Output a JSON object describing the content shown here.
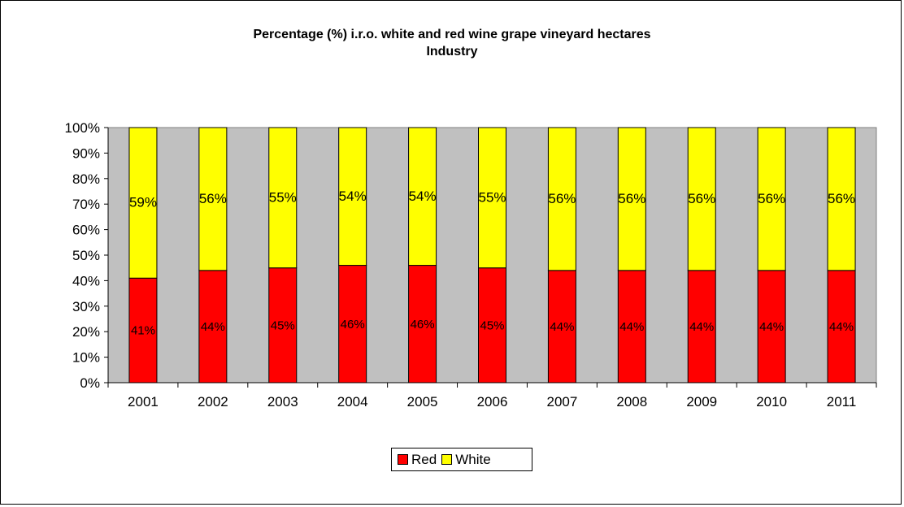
{
  "chart_data": {
    "type": "bar",
    "stacked": true,
    "title": "Percentage (%) i.r.o. white and red wine grape vineyard hectares",
    "subtitle": "Industry",
    "categories": [
      "2001",
      "2002",
      "2003",
      "2004",
      "2005",
      "2006",
      "2007",
      "2008",
      "2009",
      "2010",
      "2011"
    ],
    "series": [
      {
        "name": "Red",
        "color": "#ff0000",
        "values": [
          41,
          44,
          45,
          46,
          46,
          45,
          44,
          44,
          44,
          44,
          44
        ],
        "labels": [
          "41%",
          "44%",
          "45%",
          "46%",
          "46%",
          "45%",
          "44%",
          "44%",
          "44%",
          "44%",
          "44%"
        ]
      },
      {
        "name": "White",
        "color": "#ffff00",
        "values": [
          59,
          56,
          55,
          54,
          54,
          55,
          56,
          56,
          56,
          56,
          56
        ],
        "labels": [
          "59%",
          "56%",
          "55%",
          "54%",
          "54%",
          "55%",
          "56%",
          "56%",
          "56%",
          "56%",
          "56%"
        ]
      }
    ],
    "ylim": [
      0,
      100
    ],
    "yticks": [
      "0%",
      "10%",
      "20%",
      "30%",
      "40%",
      "50%",
      "60%",
      "70%",
      "80%",
      "90%",
      "100%"
    ],
    "grid": false,
    "plot_background": "#c0c0c0",
    "legend_position": "bottom"
  }
}
